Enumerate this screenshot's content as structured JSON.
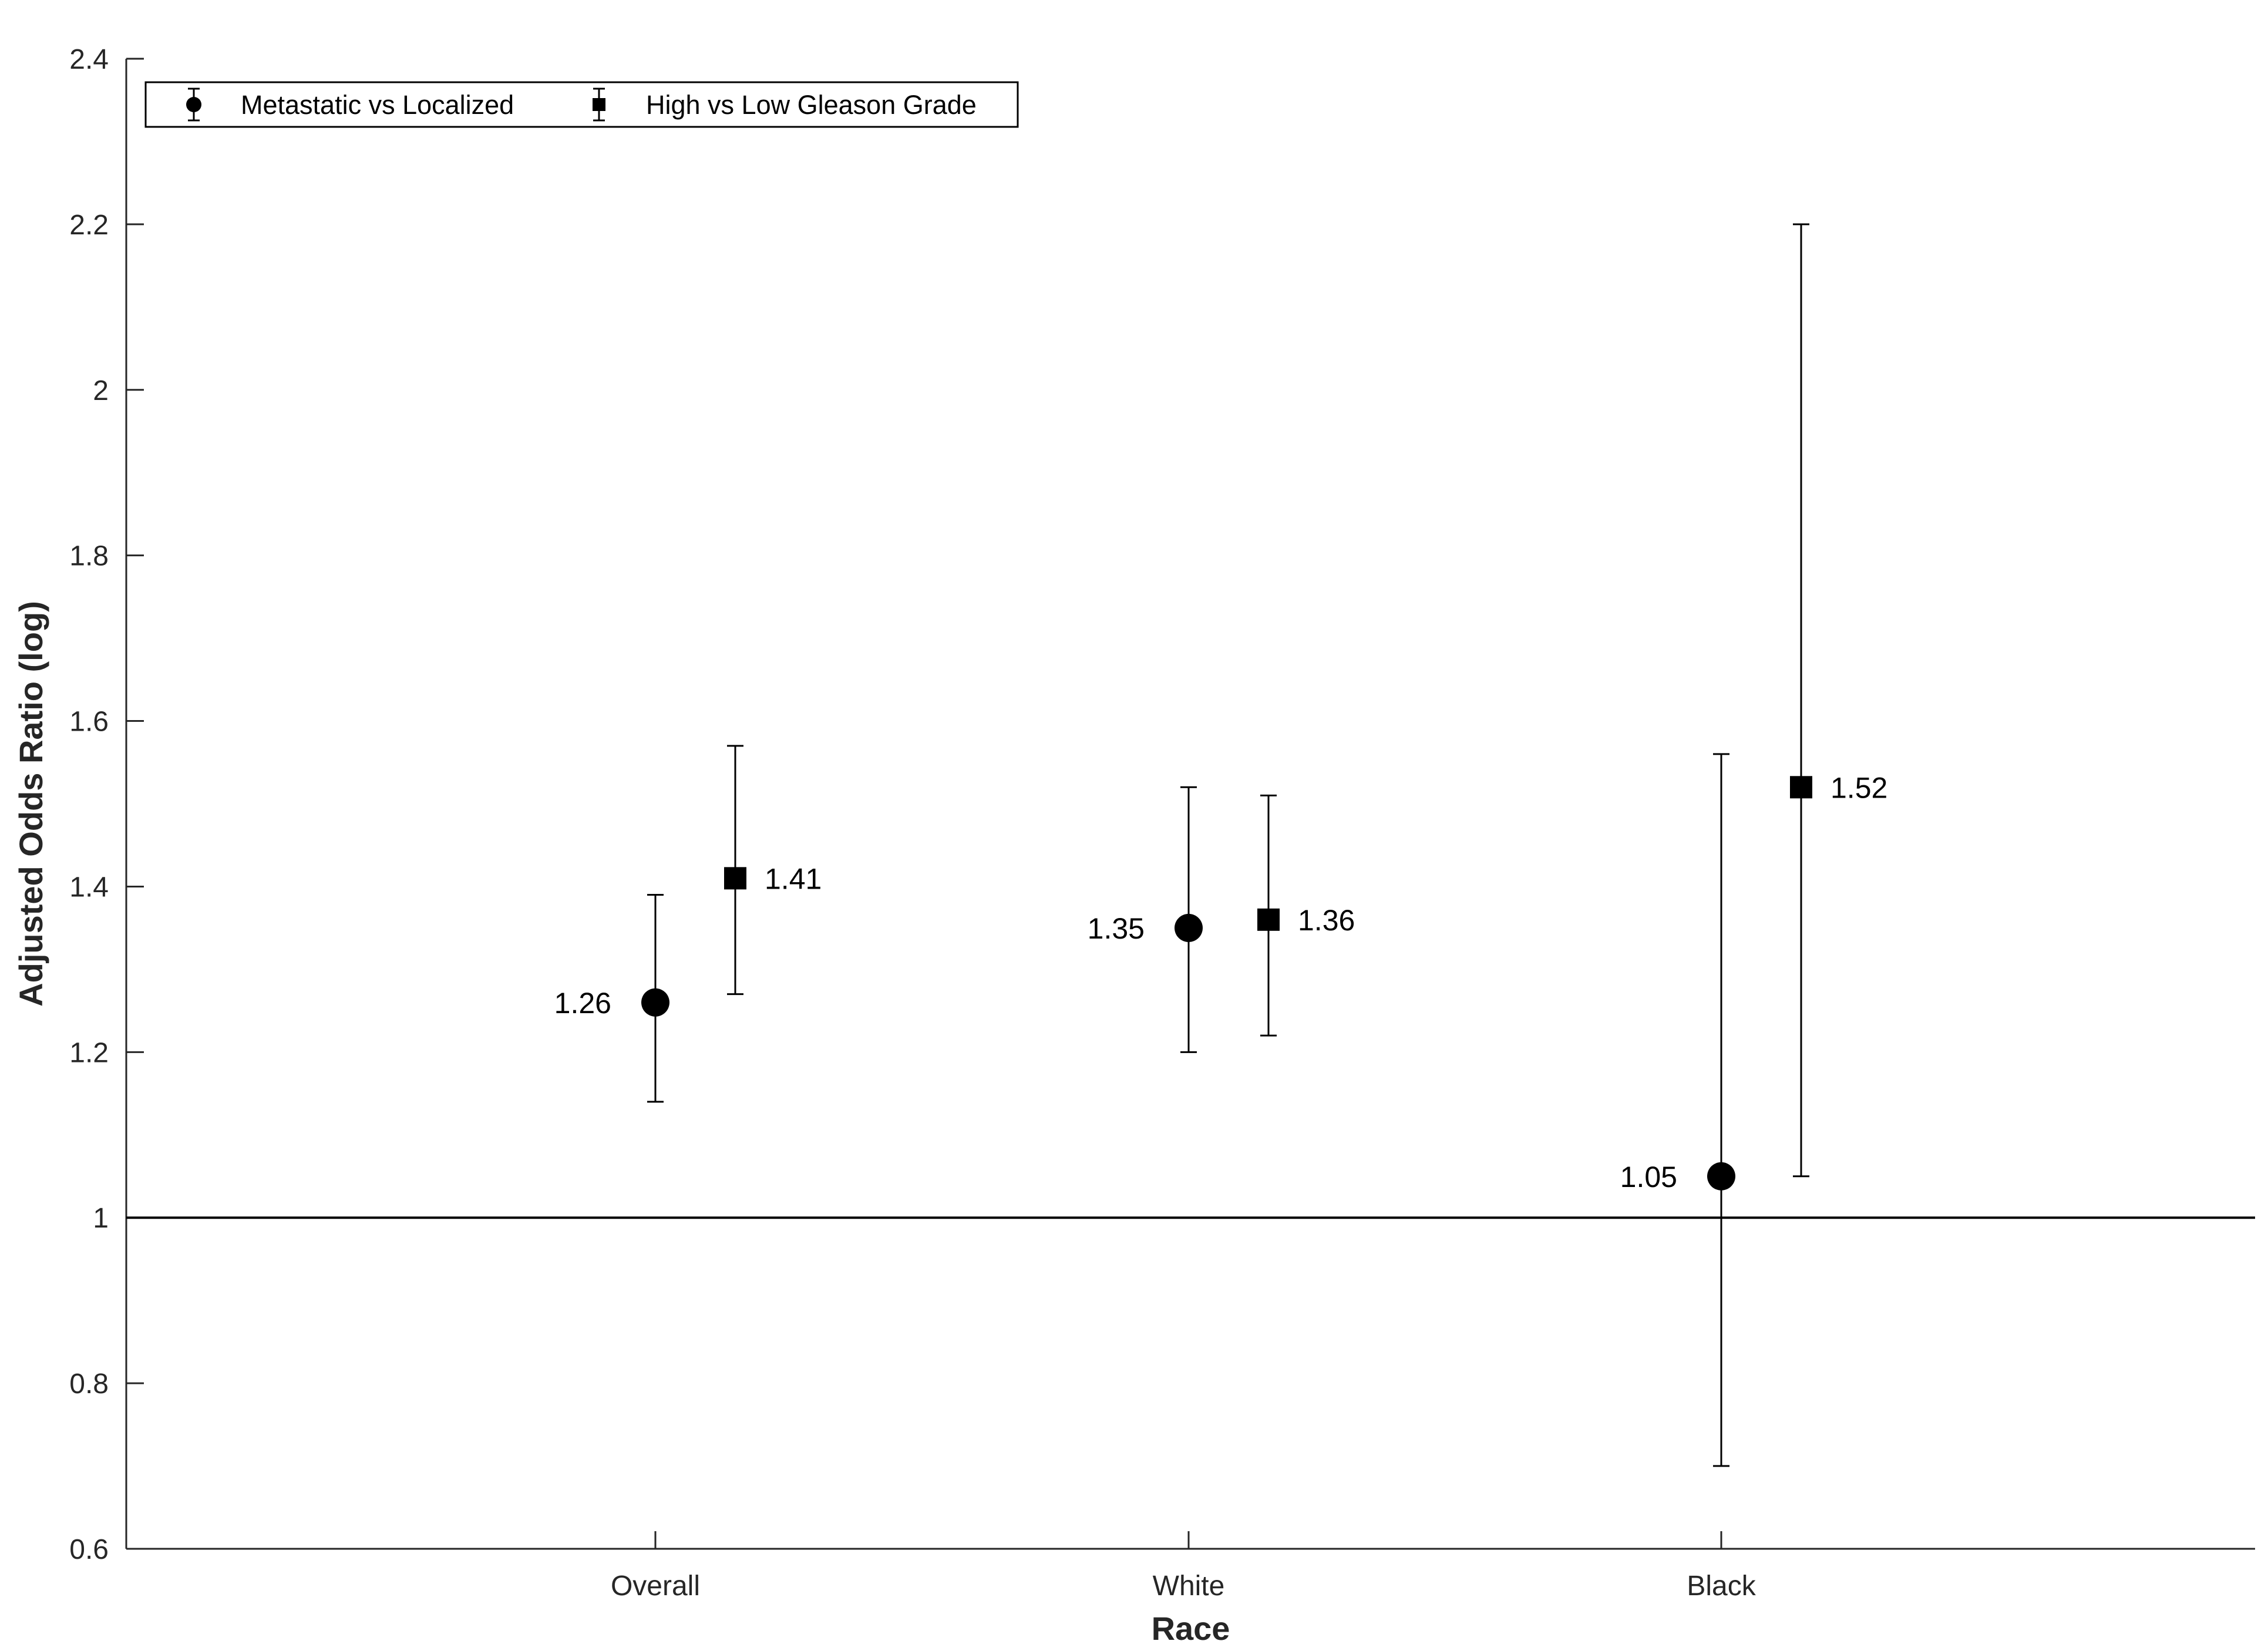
{
  "chart_data": {
    "type": "scatter",
    "xlabel": "Race",
    "ylabel": "Adjusted Odds Ratio (log)",
    "categories": [
      "Overall",
      "White",
      "Black"
    ],
    "ylim": [
      0.6,
      2.4
    ],
    "yticks": [
      0.6,
      0.8,
      1,
      1.2,
      1.4,
      1.6,
      1.8,
      2,
      2.2,
      2.4
    ],
    "ytick_labels": [
      "0.6",
      "0.8",
      "1",
      "1.2",
      "1.4",
      "1.6",
      "1.8",
      "2",
      "2.2",
      "2.4"
    ],
    "reference_line": 1,
    "legend": "top-left",
    "grid": false,
    "series": [
      {
        "name": "Metastatic vs Localized",
        "marker": "circle",
        "values": [
          1.26,
          1.35,
          1.05
        ],
        "lower": [
          1.14,
          1.2,
          0.7
        ],
        "upper": [
          1.39,
          1.52,
          1.56
        ],
        "labels": [
          "1.26",
          "1.35",
          "1.05"
        ],
        "label_side": "left"
      },
      {
        "name": "High vs Low Gleason Grade",
        "marker": "square",
        "values": [
          1.41,
          1.36,
          1.52
        ],
        "lower": [
          1.27,
          1.22,
          1.05
        ],
        "upper": [
          1.57,
          1.51,
          2.2
        ],
        "labels": [
          "1.41",
          "1.36",
          "1.52"
        ],
        "label_side": "right"
      }
    ],
    "colors": {
      "marker": "#000000",
      "axis": "#262626"
    }
  }
}
